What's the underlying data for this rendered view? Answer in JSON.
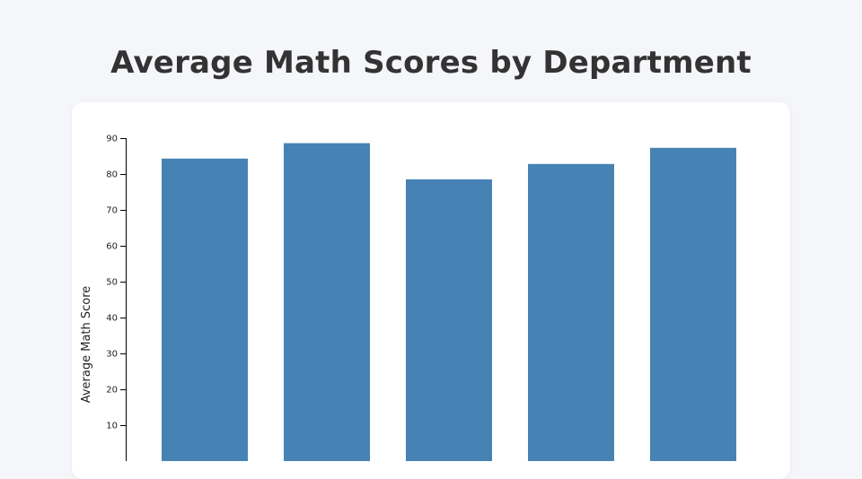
{
  "page": {
    "title": "Average Math Scores by Department"
  },
  "colors": {
    "bar": "#4682b4",
    "axis": "#000000",
    "title": "#333333",
    "background": "#f5f6fa",
    "card": "#ffffff"
  },
  "chart_data": {
    "type": "bar",
    "title": "Average Math Scores by Department",
    "xlabel": "",
    "ylabel": "Average Math Score",
    "categories": [
      "",
      "",
      "",
      "",
      ""
    ],
    "values": [
      84.3,
      88.6,
      78.5,
      82.8,
      87.3
    ],
    "ylim": [
      0,
      90
    ],
    "yticks": [
      10,
      20,
      30,
      40,
      50,
      60,
      70,
      80,
      90
    ],
    "grid": false,
    "legend": "none"
  }
}
